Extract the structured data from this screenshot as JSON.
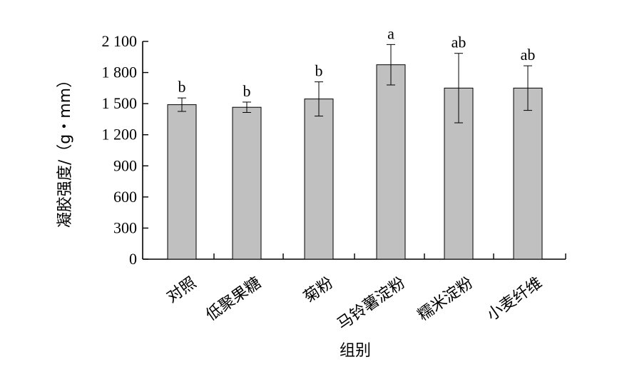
{
  "chart_data": {
    "type": "bar",
    "xlabel": "组别",
    "ylabel": "凝胶强度/（g・mm）",
    "ylim": [
      0,
      2100
    ],
    "yticks": [
      {
        "value": 0,
        "label": "0"
      },
      {
        "value": 300,
        "label": "300"
      },
      {
        "value": 600,
        "label": "600"
      },
      {
        "value": 900,
        "label": "900"
      },
      {
        "value": 1200,
        "label": "1 200"
      },
      {
        "value": 1500,
        "label": "1 500"
      },
      {
        "value": 1800,
        "label": "1 800"
      },
      {
        "value": 2100,
        "label": "2 100"
      }
    ],
    "categories": [
      "对照",
      "低聚果糖",
      "菊粉",
      "马铃薯淀粉",
      "糯米淀粉",
      "小麦纤维"
    ],
    "values": [
      1490,
      1465,
      1545,
      1875,
      1650,
      1650
    ],
    "errors": [
      65,
      50,
      165,
      195,
      335,
      215
    ],
    "significance": [
      "b",
      "b",
      "b",
      "a",
      "ab",
      "ab"
    ],
    "bar_color": "#c0c0c0"
  }
}
